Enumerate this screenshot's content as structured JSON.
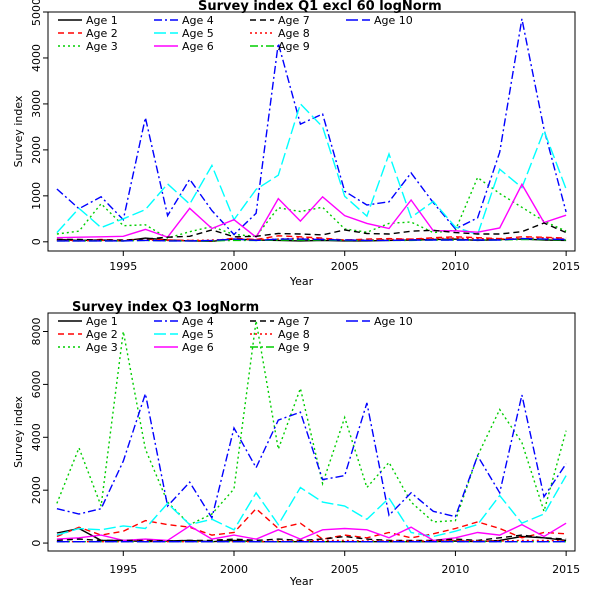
{
  "chart_data": [
    {
      "type": "line",
      "title": "Survey index Q1 excl 60 logNorm",
      "xlabel": "Year",
      "ylabel": "Survey index",
      "xlim": [
        1991.6,
        2015.4
      ],
      "ylim": [
        -200,
        5000
      ],
      "xticks": [
        1995,
        2000,
        2005,
        2010,
        2015
      ],
      "yticks": [
        0,
        1000,
        2000,
        3000,
        4000,
        5000
      ],
      "x": [
        1992,
        1993,
        1994,
        1995,
        1996,
        1997,
        1998,
        1999,
        2000,
        2001,
        2002,
        2003,
        2004,
        2005,
        2006,
        2007,
        2008,
        2009,
        2010,
        2011,
        2012,
        2013,
        2014,
        2015
      ],
      "legend_position": "top-left",
      "series": [
        {
          "name": "Age 1",
          "color": "#000000",
          "dash": "solid",
          "values": [
            50,
            30,
            40,
            20,
            80,
            40,
            20,
            10,
            60,
            40,
            30,
            20,
            30,
            20,
            20,
            30,
            40,
            50,
            60,
            30,
            50,
            60,
            40,
            30
          ]
        },
        {
          "name": "Age 2",
          "color": "#ff0000",
          "dash": "dashed",
          "values": [
            40,
            30,
            50,
            30,
            60,
            40,
            30,
            20,
            80,
            50,
            130,
            110,
            80,
            40,
            60,
            70,
            60,
            90,
            110,
            90,
            70,
            110,
            100,
            80
          ]
        },
        {
          "name": "Age 3",
          "color": "#00cd00",
          "dash": "dotted",
          "values": [
            170,
            230,
            830,
            350,
            370,
            80,
            220,
            330,
            160,
            120,
            740,
            660,
            750,
            280,
            210,
            400,
            430,
            200,
            250,
            1400,
            1050,
            750,
            450,
            230
          ]
        },
        {
          "name": "Age 4",
          "color": "#0000ff",
          "dash": "dashdot",
          "values": [
            1150,
            720,
            980,
            480,
            2700,
            570,
            1360,
            680,
            160,
            620,
            4320,
            2560,
            2780,
            1100,
            800,
            870,
            1500,
            850,
            280,
            520,
            1950,
            4850,
            2450,
            650
          ]
        },
        {
          "name": "Age 5",
          "color": "#00ffff",
          "dash": "longdash",
          "values": [
            200,
            730,
            310,
            500,
            700,
            1260,
            820,
            1660,
            480,
            1140,
            1450,
            3000,
            2500,
            990,
            560,
            1910,
            530,
            880,
            320,
            160,
            1580,
            1180,
            2420,
            1150
          ]
        },
        {
          "name": "Age 6",
          "color": "#ff00ff",
          "dash": "solid",
          "values": [
            90,
            100,
            110,
            120,
            270,
            100,
            730,
            290,
            480,
            100,
            940,
            450,
            980,
            570,
            400,
            290,
            910,
            240,
            240,
            210,
            300,
            1250,
            420,
            580
          ]
        },
        {
          "name": "Age 7",
          "color": "#000000",
          "dash": "dashed",
          "values": [
            50,
            50,
            40,
            40,
            60,
            100,
            120,
            260,
            110,
            120,
            180,
            170,
            150,
            260,
            180,
            170,
            230,
            250,
            200,
            170,
            170,
            220,
            410,
            200
          ]
        },
        {
          "name": "Age 8",
          "color": "#ff0000",
          "dash": "dotted",
          "values": [
            30,
            20,
            30,
            30,
            40,
            30,
            30,
            40,
            60,
            50,
            60,
            80,
            60,
            40,
            40,
            50,
            60,
            70,
            80,
            70,
            60,
            70,
            90,
            60
          ]
        },
        {
          "name": "Age 9",
          "color": "#00cd00",
          "dash": "dashdot",
          "values": [
            20,
            20,
            20,
            20,
            30,
            20,
            20,
            20,
            30,
            30,
            40,
            40,
            40,
            30,
            30,
            30,
            30,
            40,
            40,
            40,
            40,
            50,
            50,
            40
          ]
        },
        {
          "name": "Age 10",
          "color": "#0000ff",
          "dash": "longdash",
          "values": [
            20,
            20,
            20,
            20,
            30,
            20,
            20,
            30,
            60,
            30,
            60,
            60,
            50,
            40,
            30,
            30,
            40,
            40,
            40,
            40,
            40,
            70,
            60,
            50
          ]
        }
      ]
    },
    {
      "type": "line",
      "title": "Survey index Q3 logNorm",
      "xlabel": "Year",
      "ylabel": "Survey index",
      "xlim": [
        1991.6,
        2015.4
      ],
      "ylim": [
        -300,
        8700
      ],
      "xticks": [
        1995,
        2000,
        2005,
        2010,
        2015
      ],
      "yticks": [
        0,
        2000,
        4000,
        6000,
        8000
      ],
      "x": [
        1992,
        1993,
        1994,
        1995,
        1996,
        1997,
        1998,
        1999,
        2000,
        2001,
        2002,
        2003,
        2004,
        2005,
        2006,
        2007,
        2008,
        2009,
        2010,
        2011,
        2012,
        2013,
        2014,
        2015
      ],
      "legend_position": "top-left",
      "series": [
        {
          "name": "Age 1",
          "color": "#000000",
          "dash": "solid",
          "values": [
            380,
            550,
            100,
            100,
            50,
            80,
            100,
            50,
            100,
            50,
            50,
            50,
            50,
            50,
            50,
            50,
            50,
            50,
            80,
            50,
            100,
            250,
            200,
            100
          ]
        },
        {
          "name": "Age 2",
          "color": "#ff0000",
          "dash": "dashed",
          "values": [
            250,
            600,
            300,
            450,
            850,
            700,
            600,
            300,
            400,
            1300,
            550,
            750,
            150,
            300,
            200,
            400,
            200,
            350,
            550,
            800,
            550,
            200,
            400,
            350
          ]
        },
        {
          "name": "Age 3",
          "color": "#00cd00",
          "dash": "dotted",
          "values": [
            1500,
            3600,
            1400,
            8000,
            3550,
            1550,
            700,
            1100,
            2050,
            8400,
            3550,
            5850,
            2250,
            4750,
            2100,
            3050,
            1550,
            800,
            850,
            3300,
            5050,
            3800,
            1200,
            4250
          ]
        },
        {
          "name": "Age 4",
          "color": "#0000ff",
          "dash": "dashdot",
          "values": [
            1300,
            1100,
            1300,
            3100,
            5650,
            1400,
            2300,
            950,
            4350,
            2850,
            4650,
            4950,
            2400,
            2550,
            5300,
            1050,
            1900,
            1200,
            1000,
            3300,
            1900,
            5600,
            1750,
            3000
          ]
        },
        {
          "name": "Age 5",
          "color": "#00ffff",
          "dash": "longdash",
          "values": [
            300,
            550,
            500,
            650,
            550,
            1500,
            700,
            900,
            500,
            1900,
            700,
            2100,
            1550,
            1400,
            900,
            1700,
            400,
            250,
            450,
            700,
            1800,
            750,
            1100,
            2550
          ]
        },
        {
          "name": "Age 6",
          "color": "#ff00ff",
          "dash": "solid",
          "values": [
            150,
            200,
            300,
            100,
            150,
            100,
            650,
            150,
            300,
            150,
            500,
            150,
            500,
            550,
            500,
            200,
            600,
            100,
            200,
            400,
            300,
            700,
            250,
            750
          ]
        },
        {
          "name": "Age 7",
          "color": "#000000",
          "dash": "dashed",
          "values": [
            100,
            150,
            100,
            100,
            100,
            80,
            100,
            100,
            150,
            100,
            150,
            100,
            150,
            250,
            150,
            100,
            100,
            100,
            150,
            100,
            200,
            300,
            200,
            150
          ]
        },
        {
          "name": "Age 8",
          "color": "#ff0000",
          "dash": "dotted",
          "values": [
            50,
            50,
            50,
            50,
            80,
            50,
            50,
            50,
            50,
            50,
            80,
            80,
            100,
            100,
            80,
            80,
            80,
            80,
            100,
            80,
            80,
            100,
            100,
            80
          ]
        },
        {
          "name": "Age 9",
          "color": "#00cd00",
          "dash": "dashdot",
          "values": [
            50,
            50,
            50,
            50,
            50,
            50,
            50,
            50,
            50,
            50,
            50,
            50,
            50,
            50,
            50,
            50,
            50,
            50,
            50,
            50,
            50,
            50,
            50,
            50
          ]
        },
        {
          "name": "Age 10",
          "color": "#0000ff",
          "dash": "longdash",
          "values": [
            50,
            50,
            50,
            50,
            50,
            50,
            50,
            50,
            50,
            50,
            50,
            50,
            50,
            50,
            50,
            50,
            50,
            50,
            50,
            50,
            50,
            50,
            50,
            50
          ]
        }
      ]
    }
  ]
}
